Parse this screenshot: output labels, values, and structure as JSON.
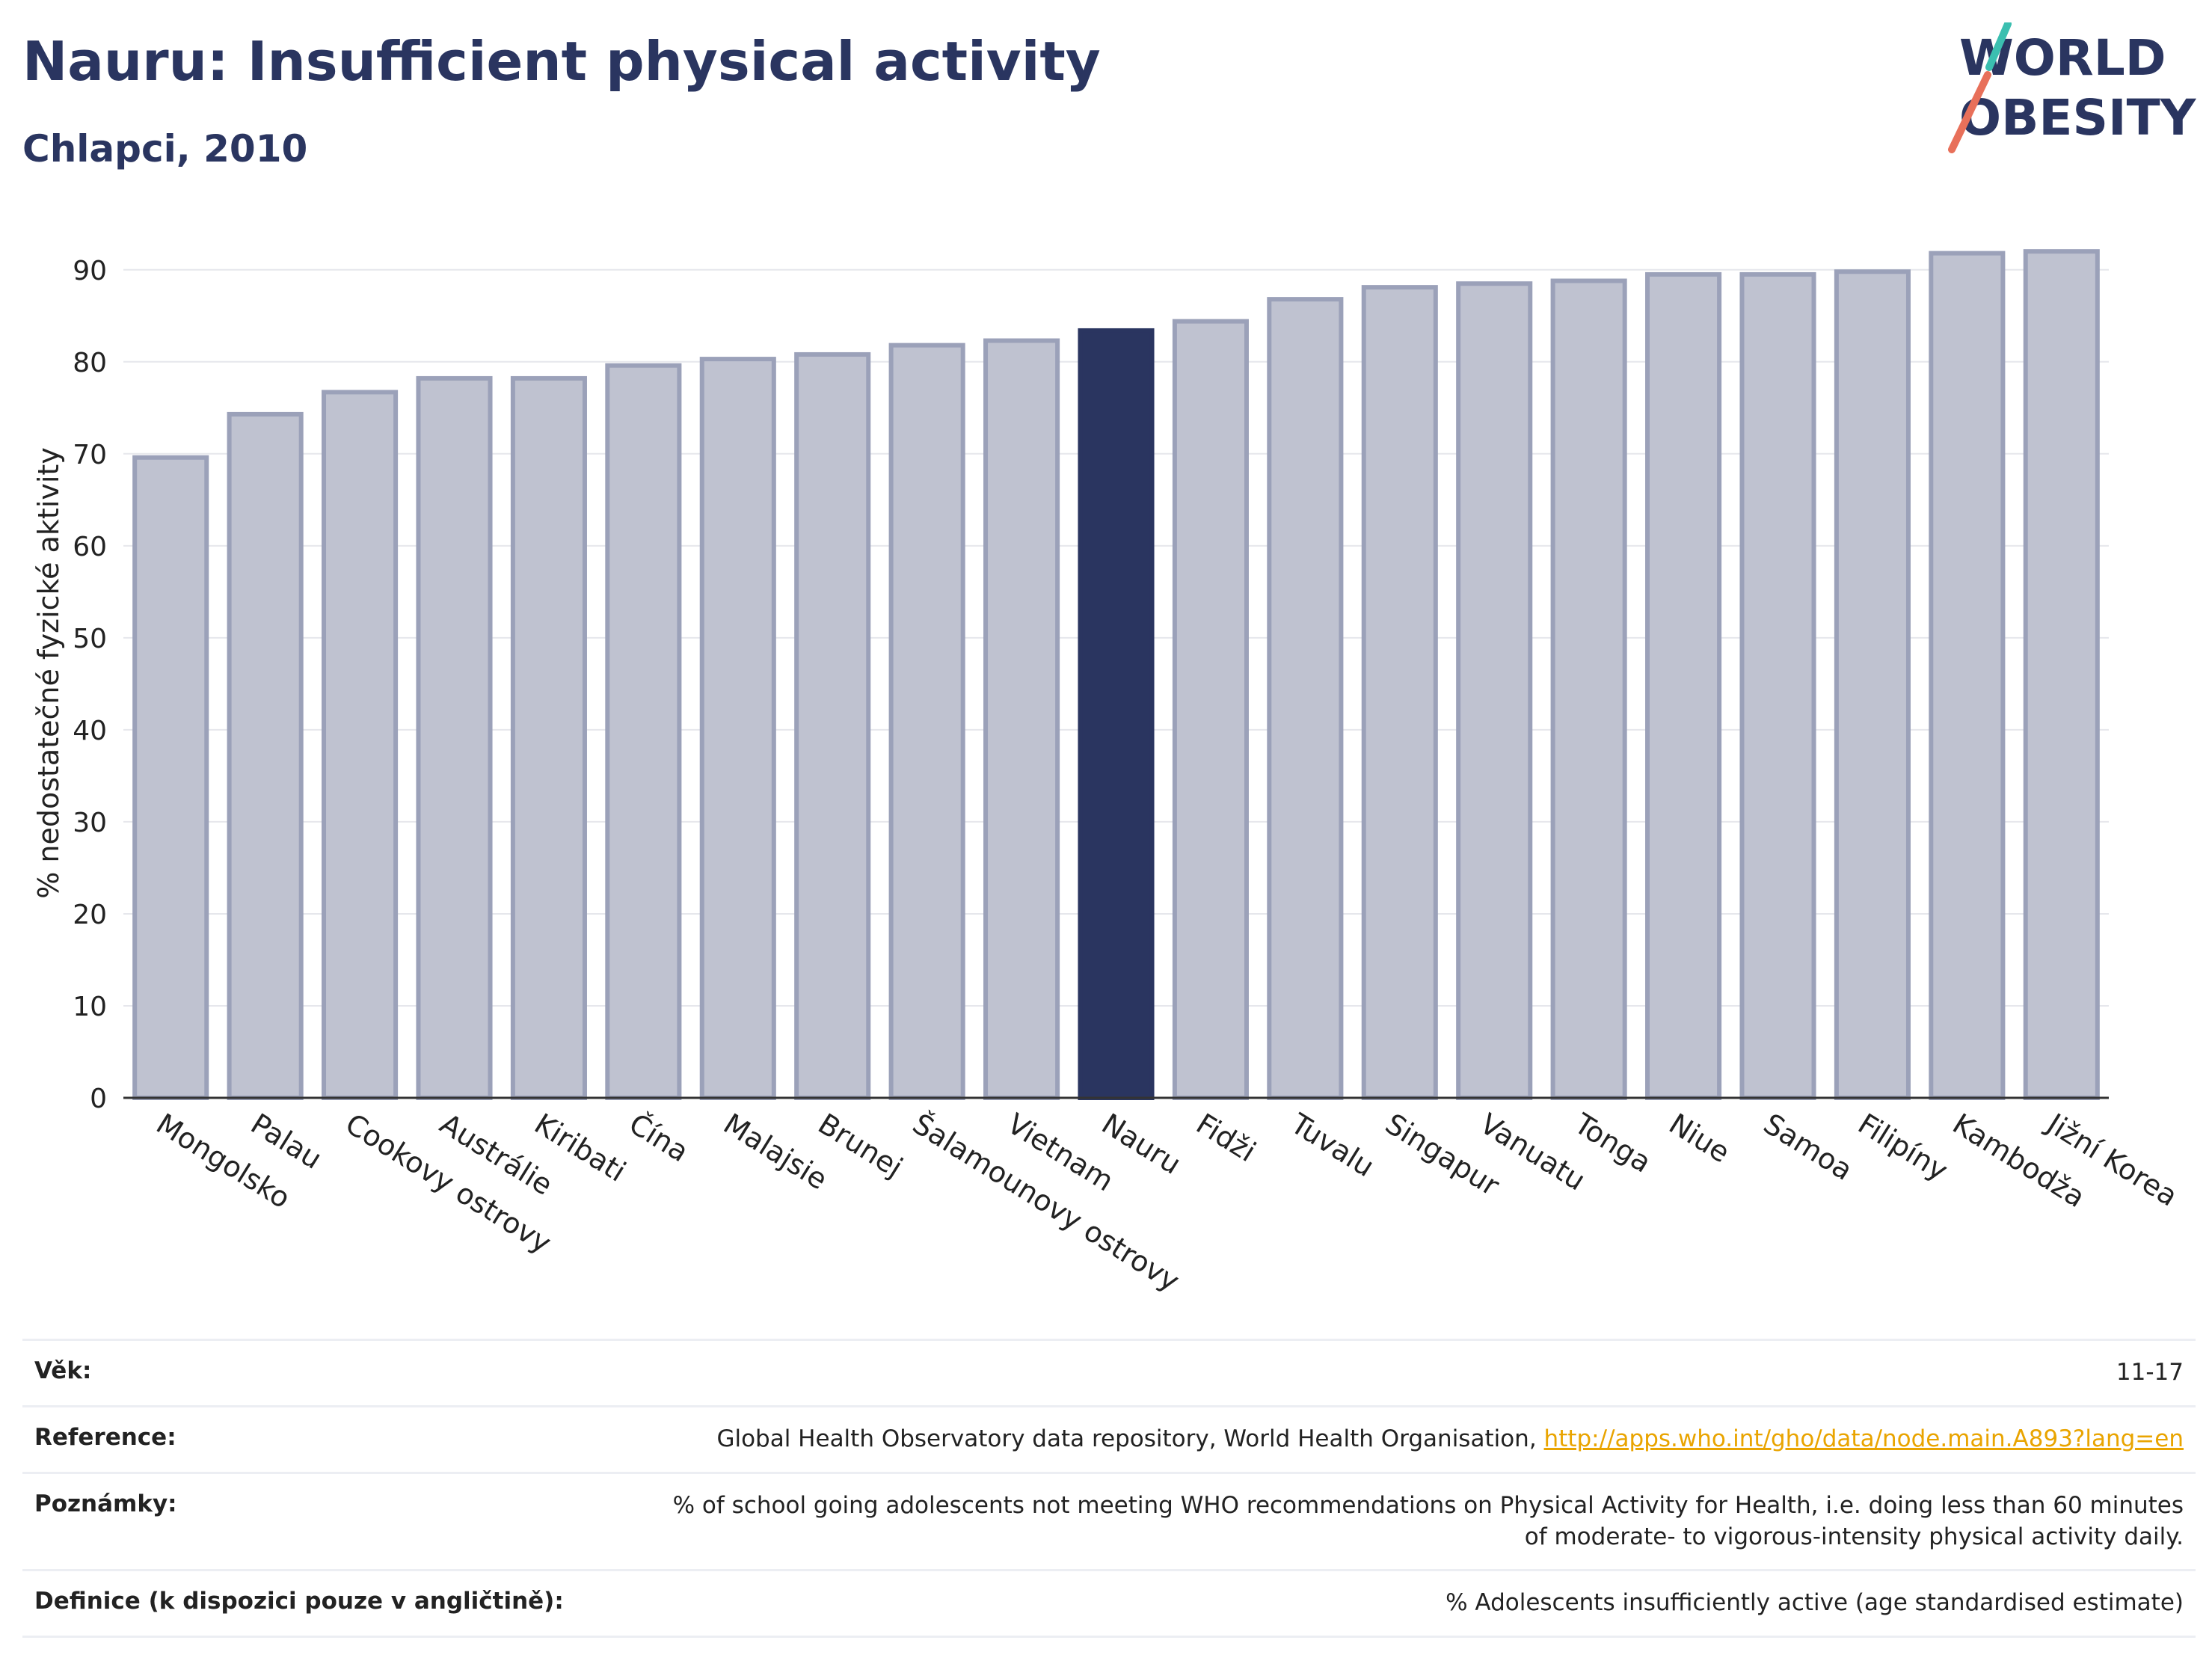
{
  "header": {
    "title": "Nauru: Insufficient physical activity",
    "subtitle": "Chlapci, 2010",
    "logo_text": "WORLD OBESITY"
  },
  "colors": {
    "highlight": "#2a3560",
    "bar_fill": "#bfc2d0",
    "bar_stroke": "#9ba1b9",
    "logo_teal": "#3bbfb0",
    "logo_coral": "#e8705a",
    "link": "#e9a400"
  },
  "chart_data": {
    "type": "bar",
    "title": "Nauru: Insufficient physical activity",
    "subtitle": "Chlapci, 2010",
    "xlabel": "",
    "ylabel": "% nedostatečné fyzické aktivity",
    "ylim": [
      0,
      90
    ],
    "yticks": [
      0,
      10,
      20,
      30,
      40,
      50,
      60,
      70,
      80,
      90
    ],
    "grid": true,
    "highlight_category": "Nauru",
    "categories": [
      "Mongolsko",
      "Palau",
      "Cookovy ostrovy",
      "Austrálie",
      "Kiribati",
      "Čína",
      "Malajsie",
      "Brunej",
      "Šalamounovy ostrovy",
      "Vietnam",
      "Nauru",
      "Fidži",
      "Tuvalu",
      "Singapur",
      "Vanuatu",
      "Tonga",
      "Niue",
      "Samoa",
      "Filipíny",
      "Kambodža",
      "Jižní Korea"
    ],
    "values": [
      69.6,
      74.3,
      76.7,
      78.2,
      78.2,
      79.6,
      80.3,
      80.8,
      81.8,
      82.3,
      83.4,
      84.4,
      86.8,
      88.1,
      88.5,
      88.8,
      89.5,
      89.5,
      89.8,
      91.8,
      92.0
    ]
  },
  "info": {
    "rows": [
      {
        "label": "Věk:",
        "value": "11-17"
      },
      {
        "label": "Reference:",
        "value": "Global Health Observatory data repository, World Health Organisation,",
        "link": "http://apps.who.int/gho/data/node.main.A893?lang=en"
      },
      {
        "label": "Poznámky:",
        "value": "% of school going adolescents not meeting WHO recommendations on Physical Activity for Health, i.e. doing less than 60 minutes of moderate- to vigorous-intensity physical activity daily."
      },
      {
        "label": "Definice (k dispozici pouze v angličtině):",
        "value": "% Adolescents insufficiently active (age standardised estimate)"
      }
    ]
  }
}
